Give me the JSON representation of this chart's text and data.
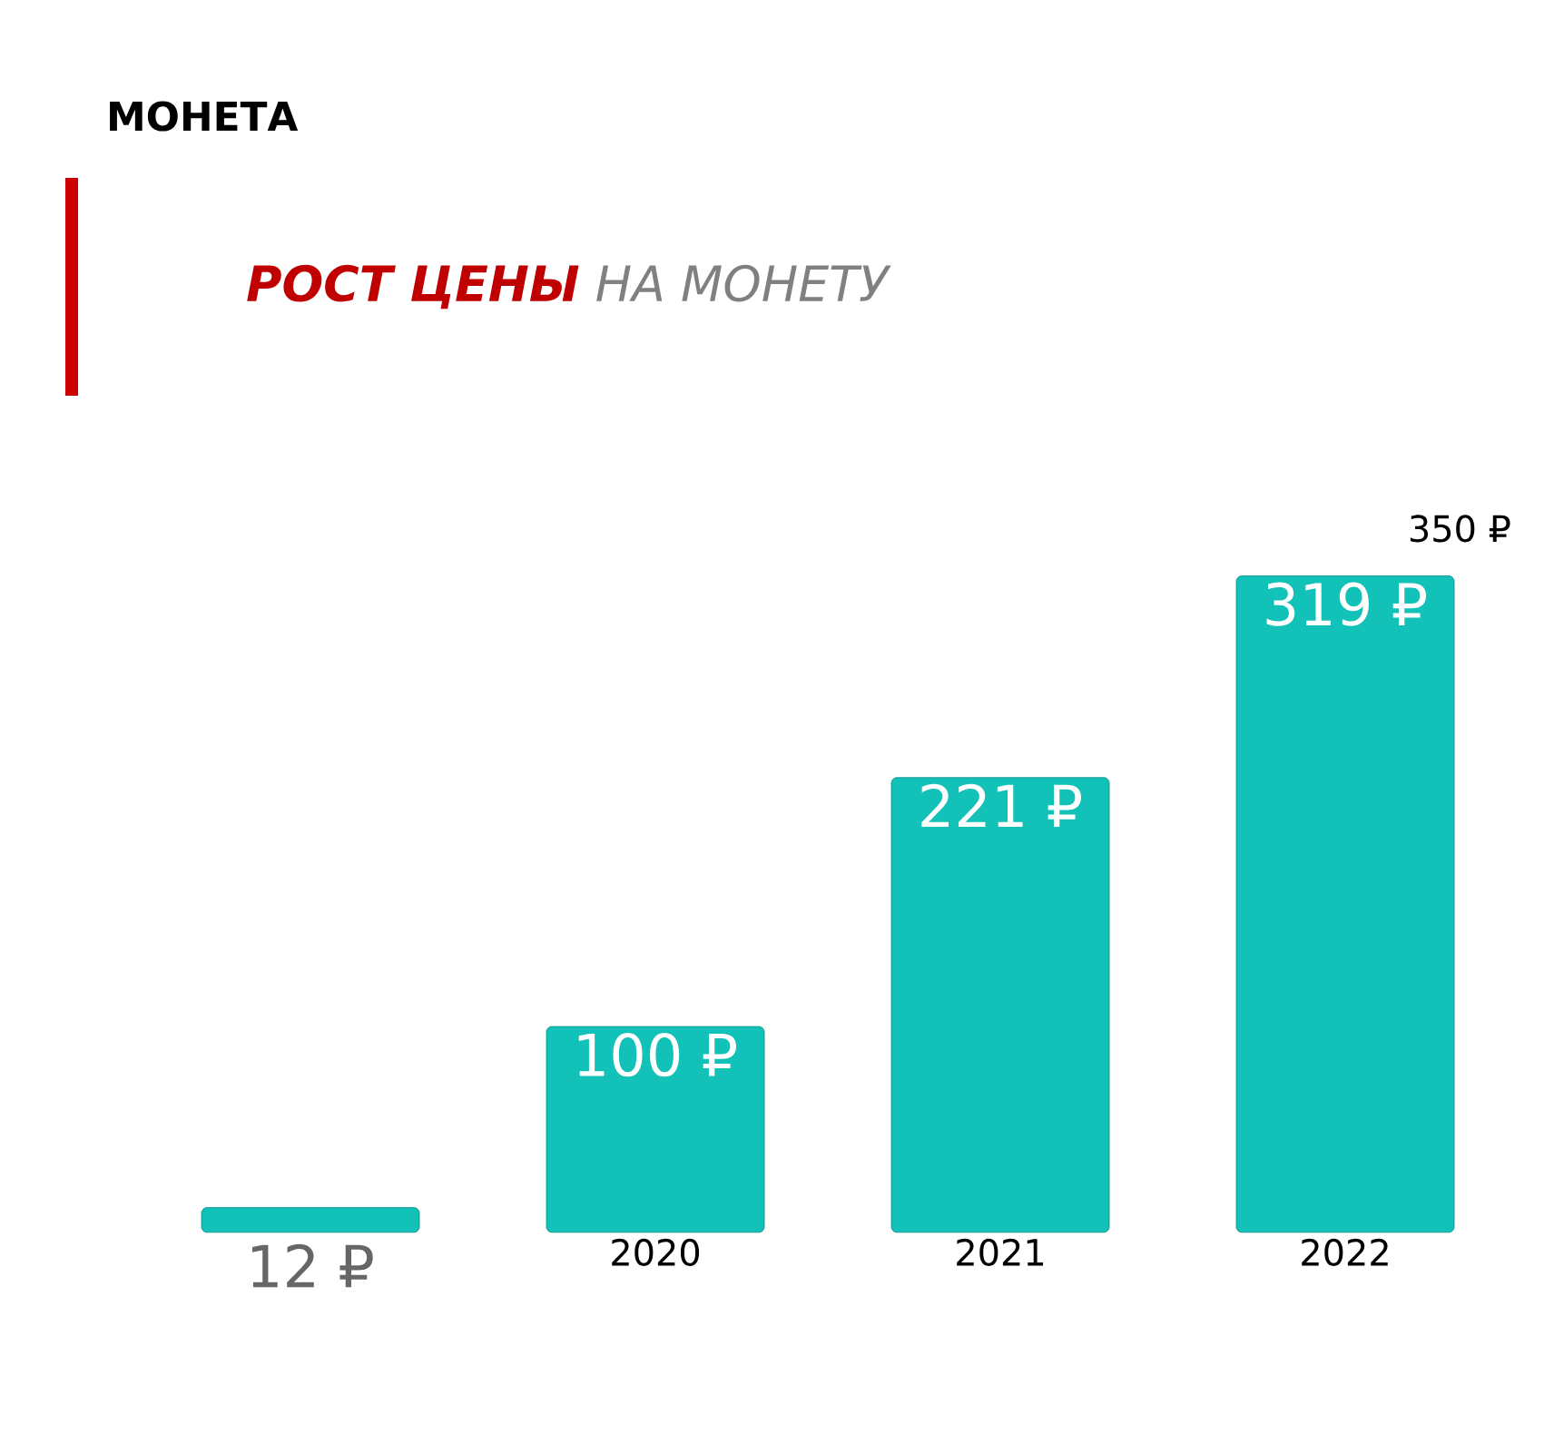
{
  "chart_data": {
    "type": "bar",
    "subtitle": "МОНЕТА",
    "title": "**РОСТ ЦЕНЫ** НА МОНЕТУ",
    "categories": [
      null,
      "2020",
      "2021",
      "2022"
    ],
    "values": [
      12,
      100,
      221,
      319
    ],
    "value_labels": [
      "12 ₽",
      "100 ₽",
      "221 ₽",
      "319 ₽"
    ],
    "color": "#12c2b8",
    "annotations": [
      "350 ₽"
    ]
  }
}
